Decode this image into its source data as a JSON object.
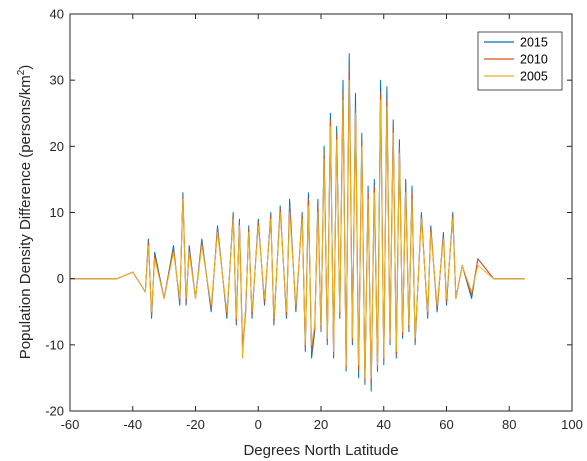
{
  "chart_data": {
    "type": "line",
    "title": "",
    "xlabel": "Degrees North Latitude",
    "ylabel": {
      "main": "Population Density Difference (persons/km",
      "sup": "2",
      "end": ")"
    },
    "xlim": [
      -60,
      100
    ],
    "ylim": [
      -20,
      40
    ],
    "xticks": [
      "-60",
      "-40",
      "-20",
      "0",
      "20",
      "40",
      "60",
      "80",
      "100"
    ],
    "yticks": [
      "-20",
      "-10",
      "0",
      "10",
      "20",
      "30",
      "40"
    ],
    "grid": false,
    "legend_position": "top-right",
    "colors": {
      "2015": "#0072BD",
      "2010": "#D95319",
      "2005": "#EDB120"
    },
    "series": [
      {
        "name": "2015",
        "x": [
          -60,
          -45,
          -40,
          -36,
          -35,
          -34,
          -33,
          -30,
          -27,
          -25,
          -24,
          -23,
          -22,
          -20,
          -18,
          -15,
          -13,
          -10,
          -8,
          -7,
          -6,
          -5,
          -4,
          -3,
          -2,
          0,
          2,
          4,
          5,
          7,
          9,
          10,
          12,
          14,
          15,
          16,
          17,
          18,
          19,
          20,
          21,
          22,
          23,
          24,
          25,
          26,
          27,
          28,
          29,
          30,
          31,
          32,
          33,
          34,
          35,
          36,
          37,
          38,
          39,
          40,
          41,
          42,
          43,
          44,
          45,
          46,
          47,
          48,
          49,
          50,
          52,
          54,
          55,
          57,
          59,
          60,
          62,
          63,
          65,
          68,
          70,
          75,
          85
        ],
        "y": [
          0,
          0,
          1,
          -2,
          6,
          -6,
          4,
          -3,
          5,
          -4,
          13,
          -4,
          5,
          -3,
          6,
          -5,
          8,
          -6,
          10,
          -7,
          9,
          -11,
          -5,
          8,
          -6,
          9,
          -4,
          10,
          -7,
          11,
          -6,
          12,
          -5,
          10,
          -11,
          13,
          -12,
          -8,
          12,
          -8,
          20,
          -10,
          25,
          -12,
          23,
          -6,
          30,
          -14,
          34,
          -10,
          28,
          -15,
          22,
          -16,
          14,
          -17,
          15,
          -14,
          30,
          -13,
          29,
          -10,
          24,
          -12,
          21,
          -9,
          15,
          -8,
          14,
          -10,
          10,
          -6,
          8,
          -5,
          7,
          -4,
          10,
          -3,
          2,
          -3,
          3,
          0,
          0
        ]
      },
      {
        "name": "2010",
        "x": [
          -60,
          -45,
          -40,
          -36,
          -35,
          -34,
          -33,
          -30,
          -27,
          -25,
          -24,
          -23,
          -22,
          -20,
          -18,
          -15,
          -13,
          -10,
          -8,
          -7,
          -6,
          -5,
          -4,
          -3,
          -2,
          0,
          2,
          4,
          5,
          7,
          9,
          10,
          12,
          14,
          15,
          16,
          17,
          18,
          19,
          20,
          21,
          22,
          23,
          24,
          25,
          26,
          27,
          28,
          29,
          30,
          31,
          32,
          33,
          34,
          35,
          36,
          37,
          38,
          39,
          40,
          41,
          42,
          43,
          44,
          45,
          46,
          47,
          48,
          49,
          50,
          52,
          54,
          55,
          57,
          59,
          60,
          62,
          63,
          65,
          68,
          70,
          75,
          85
        ],
        "y": [
          0,
          0,
          1,
          -2,
          5.5,
          -5.5,
          3.5,
          -3,
          4.5,
          -3.5,
          12.5,
          -3.5,
          4.5,
          -3,
          5.5,
          -4.5,
          7.5,
          -5.5,
          9.5,
          -6.5,
          8.5,
          -10.5,
          -4.5,
          7.5,
          -5.5,
          8.5,
          -3.5,
          9.5,
          -6.5,
          10.5,
          -5.5,
          11,
          -4.5,
          9.5,
          -10.5,
          12,
          -11,
          -7.5,
          11,
          -7.5,
          19,
          -9.5,
          24,
          -11.5,
          22,
          -5.5,
          28,
          -13.5,
          32,
          -9.5,
          26,
          -14,
          21,
          -15.5,
          13,
          -16,
          14,
          -13.5,
          28,
          -12.5,
          27,
          -9.5,
          23,
          -11.5,
          20,
          -8.5,
          14,
          -7.5,
          13,
          -9.5,
          9.5,
          -5.5,
          7.5,
          -4.5,
          6.5,
          -3.5,
          9.5,
          -3,
          2,
          -2.5,
          3,
          0,
          0
        ]
      },
      {
        "name": "2005",
        "x": [
          -60,
          -45,
          -40,
          -36,
          -35,
          -34,
          -33,
          -30,
          -27,
          -25,
          -24,
          -23,
          -22,
          -20,
          -18,
          -15,
          -13,
          -10,
          -8,
          -7,
          -6,
          -5,
          -4,
          -3,
          -2,
          0,
          2,
          4,
          5,
          7,
          9,
          10,
          12,
          14,
          15,
          16,
          17,
          18,
          19,
          20,
          21,
          22,
          23,
          24,
          25,
          26,
          27,
          28,
          29,
          30,
          31,
          32,
          33,
          34,
          35,
          36,
          37,
          38,
          39,
          40,
          41,
          42,
          43,
          44,
          45,
          46,
          47,
          48,
          49,
          50,
          52,
          54,
          55,
          57,
          59,
          60,
          62,
          63,
          65,
          68,
          70,
          75,
          85
        ],
        "y": [
          0,
          0,
          1,
          -2,
          5,
          -5,
          3,
          -3,
          4,
          -3,
          12,
          -3,
          4,
          -3,
          5,
          -4,
          7,
          -5,
          9,
          -6,
          8,
          -12,
          -4,
          7,
          -5,
          8,
          -3,
          9,
          -6,
          10,
          -5,
          10,
          -4,
          9,
          -10,
          11,
          -10,
          -7,
          10,
          -7,
          18,
          -9,
          23,
          -11,
          21,
          -5,
          27,
          -13,
          30,
          -9,
          25,
          -13,
          20,
          -15,
          12,
          -15,
          13,
          -13,
          27,
          -12,
          26,
          -9,
          22,
          -11,
          19,
          -8,
          13,
          -7,
          12,
          -9,
          9,
          -5,
          7,
          -4,
          6,
          -3,
          9,
          -3,
          2,
          -2,
          2,
          0,
          0
        ]
      }
    ]
  }
}
